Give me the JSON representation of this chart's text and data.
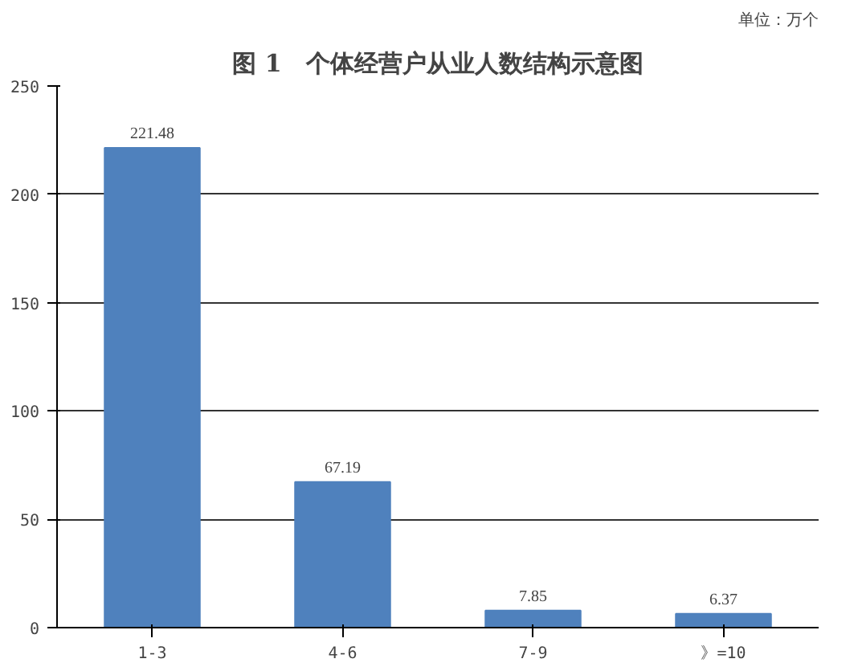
{
  "chart_data": {
    "type": "bar",
    "title": "图 1　个体经营户从业人数结构示意图",
    "annotations": [
      "单位：万个"
    ],
    "categories": [
      "1-3",
      "4-6",
      "7-9",
      "》=10"
    ],
    "values": [
      221.48,
      67.19,
      7.85,
      6.37
    ],
    "color": "#4f81bd",
    "ylim": [
      0,
      250
    ],
    "yticks": [
      0,
      50,
      100,
      150,
      200,
      250
    ],
    "grid": "y",
    "data_labels": true
  }
}
